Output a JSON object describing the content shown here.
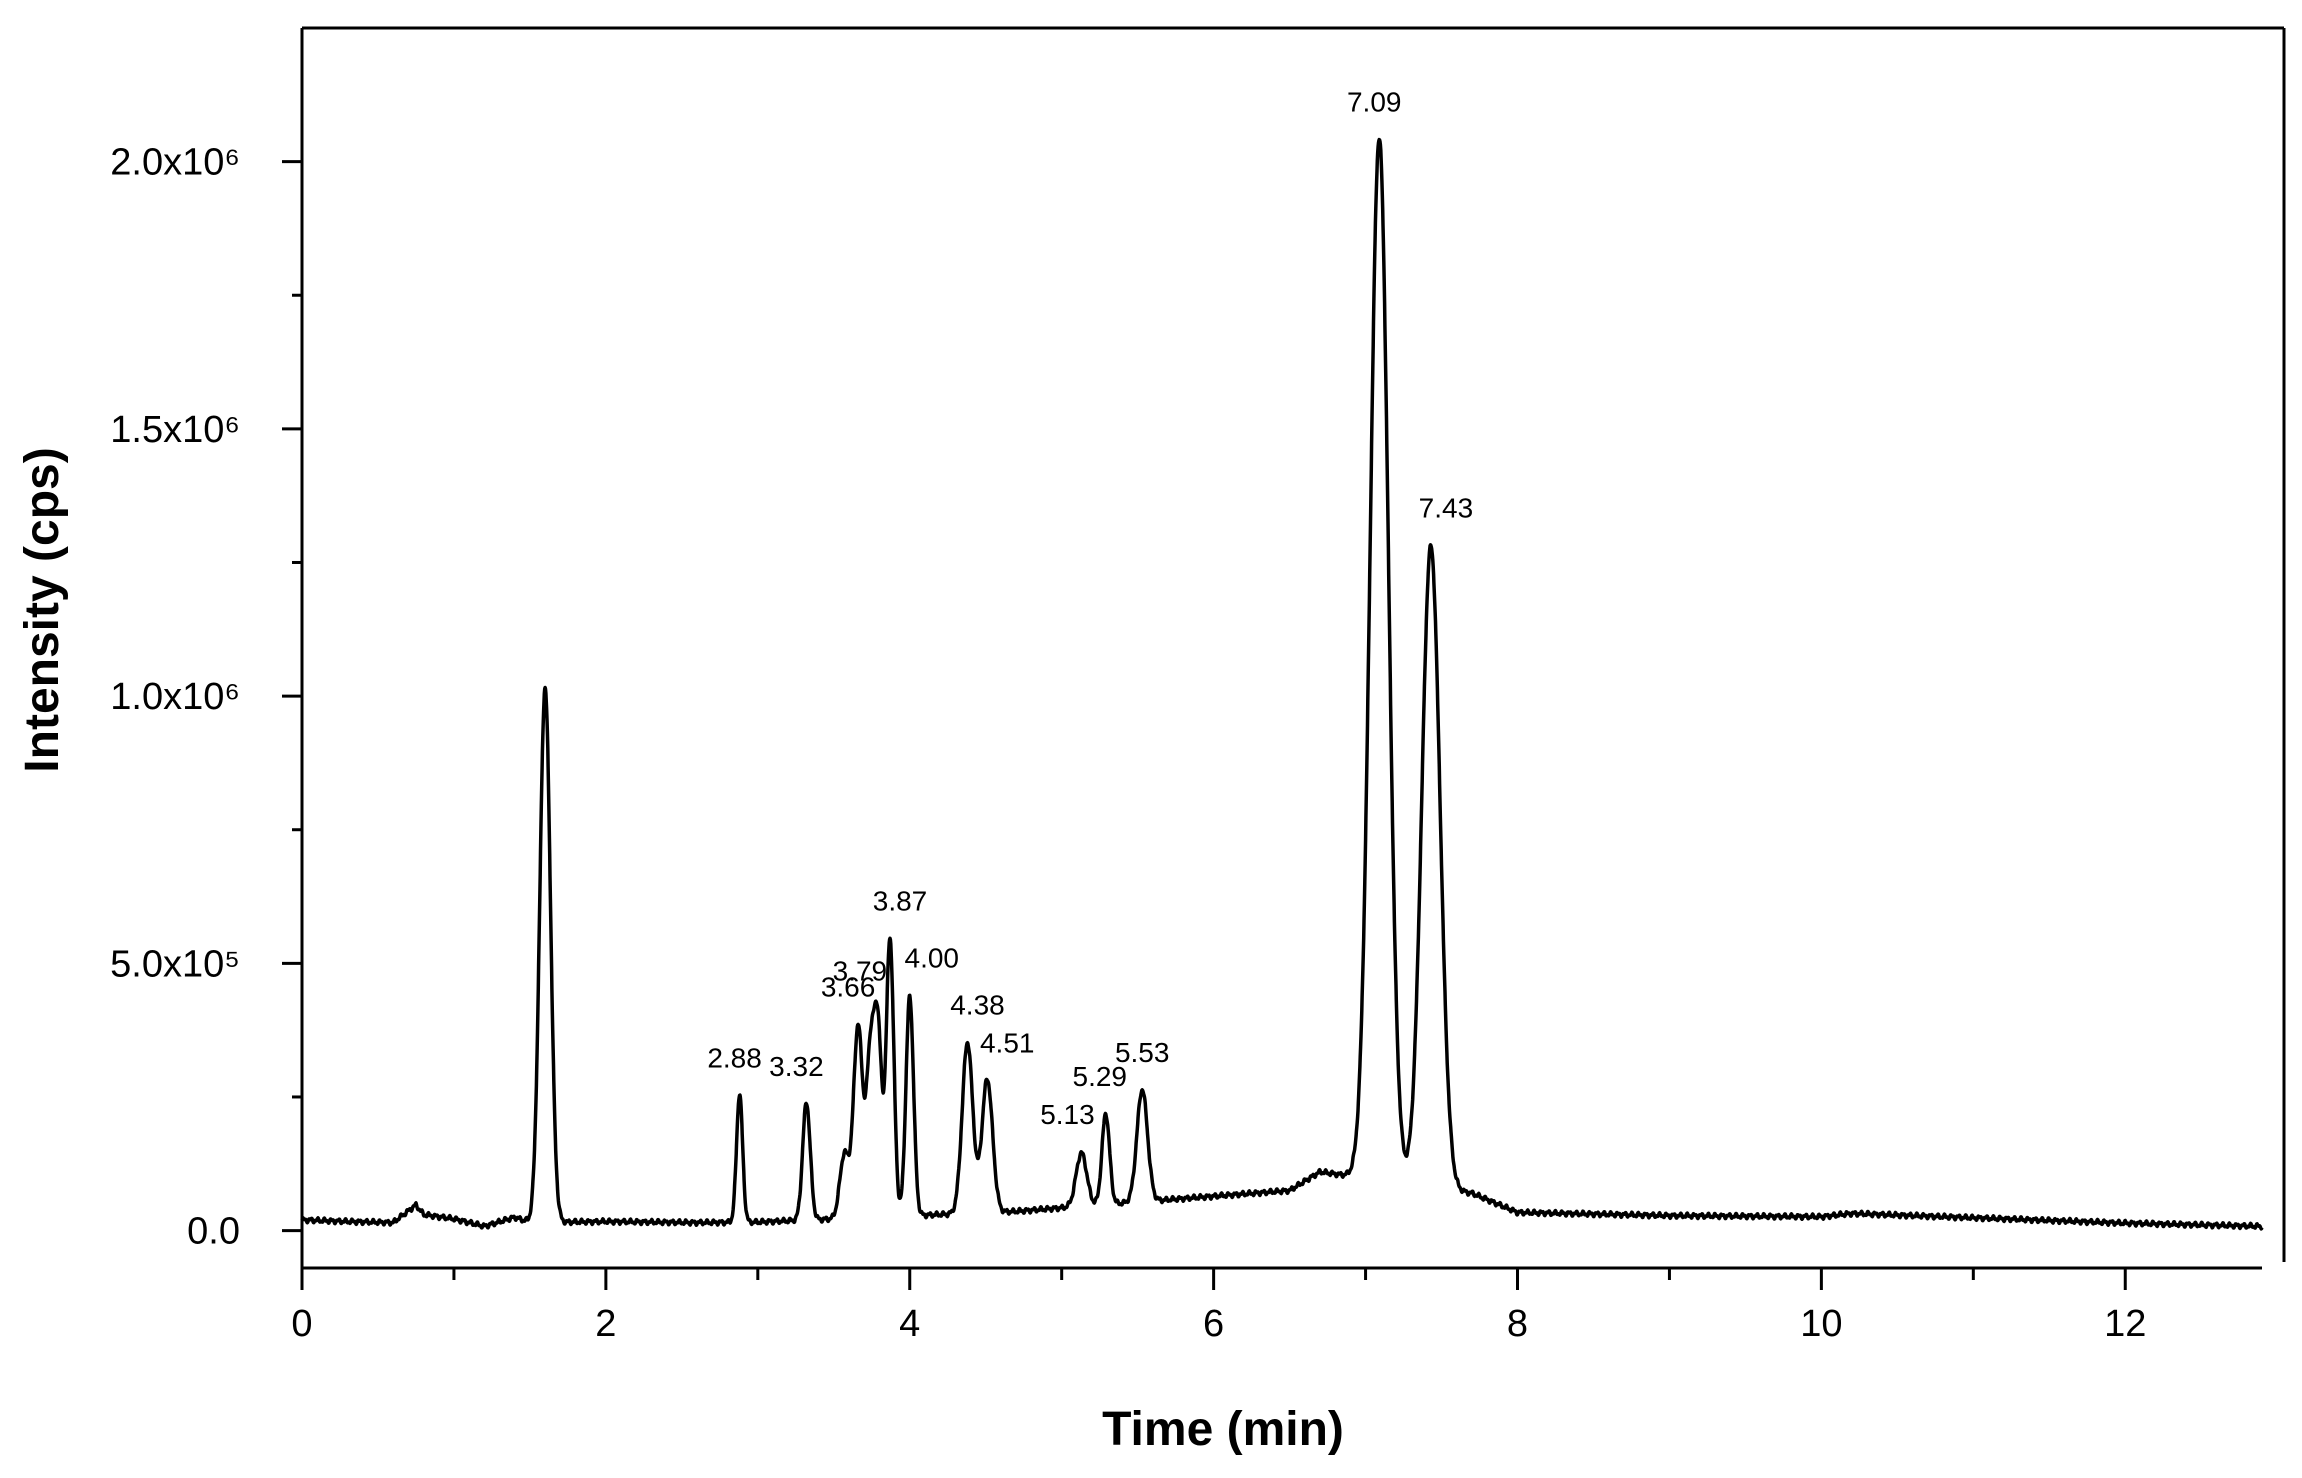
{
  "chart_data": {
    "type": "line",
    "title": "",
    "xlabel": "Time (min)",
    "ylabel": "Intensity (cps)",
    "xlim": [
      0,
      12.9
    ],
    "ylim": [
      -70000,
      2250000
    ],
    "grid": false,
    "legend": "none",
    "line_color": "#000000",
    "x_ticks": [
      {
        "value": 0,
        "label": "0"
      },
      {
        "value": 2,
        "label": "2"
      },
      {
        "value": 4,
        "label": "4"
      },
      {
        "value": 6,
        "label": "6"
      },
      {
        "value": 8,
        "label": "8"
      },
      {
        "value": 10,
        "label": "10"
      },
      {
        "value": 12,
        "label": "12"
      }
    ],
    "x_minor_ticks": [
      1,
      3,
      5,
      7,
      9,
      11
    ],
    "y_ticks": [
      {
        "value": 0,
        "label": "0.0"
      },
      {
        "value": 500000,
        "label": "5.0x10⁵"
      },
      {
        "value": 1000000,
        "label": "1.0x10⁶"
      },
      {
        "value": 1500000,
        "label": "1.5x10⁶"
      },
      {
        "value": 2000000,
        "label": "2.0x10⁶"
      }
    ],
    "y_minor_ticks": [
      250000,
      750000,
      1250000,
      1750000
    ],
    "baseline": [
      [
        0,
        20000
      ],
      [
        0.3,
        17000
      ],
      [
        0.6,
        15000
      ],
      [
        0.75,
        48000
      ],
      [
        0.8,
        30000
      ],
      [
        1.0,
        22000
      ],
      [
        1.2,
        8000
      ],
      [
        1.4,
        25000
      ],
      [
        1.5,
        15000
      ],
      [
        2.0,
        17000
      ],
      [
        2.6,
        15000
      ],
      [
        3.0,
        16000
      ],
      [
        4.7,
        36000
      ],
      [
        5.8,
        60000
      ],
      [
        6.5,
        75000
      ],
      [
        6.7,
        110000
      ],
      [
        7.7,
        70000
      ],
      [
        8.0,
        34000
      ],
      [
        9.0,
        28000
      ],
      [
        10.0,
        26000
      ],
      [
        10.2,
        32000
      ],
      [
        11.0,
        24000
      ],
      [
        12.0,
        14000
      ],
      [
        12.9,
        8000
      ]
    ],
    "peaks": [
      {
        "rt": 1.6,
        "height": 1000000,
        "width": 0.035,
        "label": ""
      },
      {
        "rt": 2.88,
        "height": 240000,
        "width": 0.02,
        "label": "2.88"
      },
      {
        "rt": 3.32,
        "height": 220000,
        "width": 0.025,
        "label": "3.32"
      },
      {
        "rt": 3.57,
        "height": 120000,
        "width": 0.03,
        "label": ""
      },
      {
        "rt": 3.66,
        "height": 360000,
        "width": 0.03,
        "label": "3.66"
      },
      {
        "rt": 3.74,
        "height": 290000,
        "width": 0.025,
        "label": ""
      },
      {
        "rt": 3.79,
        "height": 350000,
        "width": 0.025,
        "label": "3.79"
      },
      {
        "rt": 3.87,
        "height": 520000,
        "width": 0.025,
        "label": "3.87"
      },
      {
        "rt": 4.0,
        "height": 410000,
        "width": 0.025,
        "label": "4.00"
      },
      {
        "rt": 4.38,
        "height": 320000,
        "width": 0.035,
        "label": "4.38"
      },
      {
        "rt": 4.51,
        "height": 250000,
        "width": 0.035,
        "label": "4.51"
      },
      {
        "rt": 5.13,
        "height": 100000,
        "width": 0.035,
        "label": "5.13"
      },
      {
        "rt": 5.29,
        "height": 170000,
        "width": 0.025,
        "label": "5.29"
      },
      {
        "rt": 5.53,
        "height": 210000,
        "width": 0.035,
        "label": "5.53"
      },
      {
        "rt": 7.09,
        "height": 1950000,
        "width": 0.06,
        "label": "7.09"
      },
      {
        "rt": 7.43,
        "height": 1200000,
        "width": 0.06,
        "label": "7.43"
      }
    ]
  }
}
